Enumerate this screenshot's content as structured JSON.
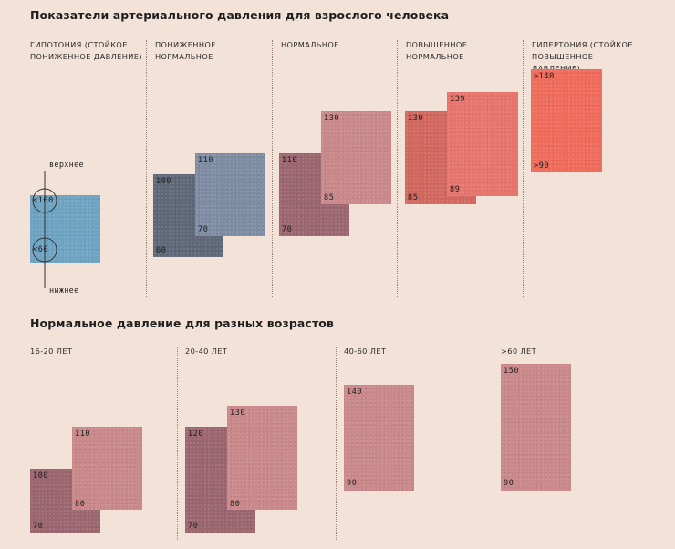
{
  "chart_data": [
    {
      "type": "range-blocks",
      "title": "Показатели артериального давления для взрослого человека",
      "categories": [
        {
          "label": "ГИПОТОНИЯ (СТОЙКОЕ ПОНИЖЕННОЕ ДАВЛЕНИЕ)",
          "systolic": "<100",
          "diastolic": "<60",
          "color": "#6ea3c1"
        },
        {
          "label": "ПОНИЖЕННОЕ НОРМАЛЬНОЕ",
          "systolic_min": 100,
          "systolic_max": 110,
          "diastolic_min": 60,
          "diastolic_max": 70,
          "color_back": "#5e6878",
          "color_front": "#7e8ca3"
        },
        {
          "label": "НОРМАЛЬНОЕ",
          "systolic_min": 110,
          "systolic_max": 130,
          "diastolic_min": 70,
          "diastolic_max": 85,
          "color_back": "#9c6670",
          "color_front": "#c98889"
        },
        {
          "label": "ПОВЫШЕННОЕ НОРМАЛЬНОЕ",
          "systolic_min": 130,
          "systolic_max": 139,
          "diastolic_min": 85,
          "diastolic_max": 89,
          "color_back": "#d1685f",
          "color_front": "#e7746d"
        },
        {
          "label": "ГИПЕРТОНИЯ (СТОЙКОЕ ПОВЫШЕННОЕ ДАВЛЕНИЕ)",
          "systolic": ">140",
          "diastolic": ">90",
          "color": "#ef6b5b"
        }
      ],
      "annotations": {
        "upper": "верхнее",
        "lower": "нижнее"
      }
    },
    {
      "type": "range-blocks",
      "title": "Нормальное давление для разных возрастов",
      "categories": [
        {
          "label": "16-20 ЛЕТ",
          "systolic_min": 100,
          "systolic_max": 110,
          "diastolic_min": 70,
          "diastolic_max": 80
        },
        {
          "label": "20-40 ЛЕТ",
          "systolic_min": 120,
          "systolic_max": 130,
          "diastolic_min": 70,
          "diastolic_max": 80
        },
        {
          "label": "40-60 ЛЕТ",
          "systolic": 140,
          "diastolic": 90
        },
        {
          "label": ">60 ЛЕТ",
          "systolic": 150,
          "diastolic": 90
        }
      ],
      "colors": {
        "back": "#9c6670",
        "front": "#c98889"
      }
    }
  ]
}
